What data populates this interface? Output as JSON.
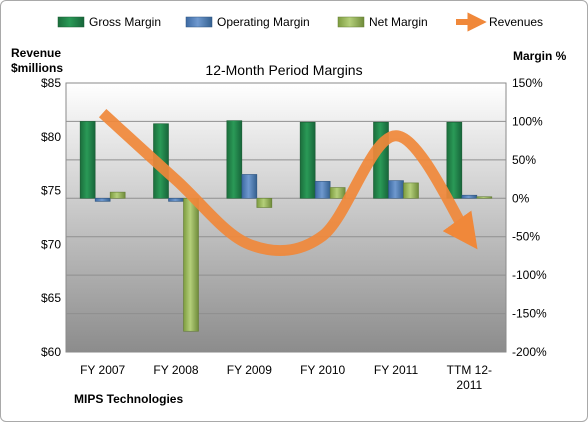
{
  "chart_data": {
    "type": "bar",
    "title": "12-Month Period Margins",
    "categories": [
      "FY 2007",
      "FY 2008",
      "FY 2009",
      "FY 2010",
      "FY 2011",
      "TTM 12-2011"
    ],
    "category_labels": [
      [
        "FY 2007"
      ],
      [
        "FY 2008"
      ],
      [
        "FY 2009"
      ],
      [
        "FY 2010"
      ],
      [
        "FY 2011"
      ],
      [
        "TTM 12-",
        "2011"
      ]
    ],
    "series": [
      {
        "name": "Gross Margin",
        "axis": "right",
        "color": "#1f8a4c",
        "values": [
          100,
          97,
          101,
          99,
          99,
          99
        ]
      },
      {
        "name": "Operating Margin",
        "axis": "right",
        "color": "#4f81bd",
        "values": [
          -4,
          -4,
          31,
          22,
          23,
          4
        ]
      },
      {
        "name": "Net Margin",
        "axis": "right",
        "color": "#9bbb59",
        "values": [
          8,
          -173,
          -12,
          14,
          20,
          2
        ]
      }
    ],
    "line_series": {
      "name": "Revenues",
      "axis": "left",
      "color": "#f79646",
      "values": [
        82.2,
        76.0,
        70.0,
        70.8,
        80.1,
        70.6
      ]
    },
    "y_left": {
      "label_lines": [
        "Revenue",
        "$millions"
      ],
      "ylim": [
        60,
        85
      ],
      "ticks": [
        "$60",
        "$65",
        "$70",
        "$75",
        "$80",
        "$85"
      ],
      "tick_values": [
        60,
        65,
        70,
        75,
        80,
        85
      ]
    },
    "y_right": {
      "label": "Margin %",
      "ylim": [
        -200,
        150
      ],
      "ticks": [
        "-200%",
        "-150%",
        "-100%",
        "-50%",
        "0%",
        "50%",
        "100%",
        "150%"
      ],
      "tick_values": [
        -200,
        -150,
        -100,
        -50,
        0,
        50,
        100,
        150
      ]
    },
    "legend_position": "top",
    "grid": true,
    "footer": "MIPS Technologies"
  }
}
